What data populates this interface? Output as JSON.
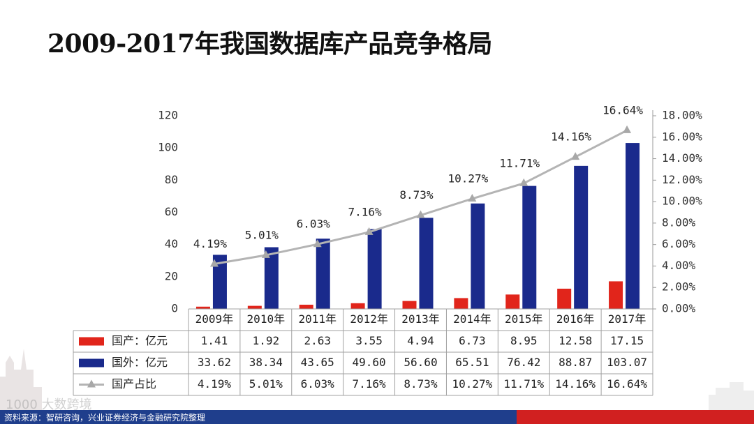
{
  "page": {
    "title": "2009-2017年我国数据库产品竞争格局",
    "source": "资料来源：智研咨询，兴业证券经济与金融研究院整理",
    "watermark": "1000 大数跨境"
  },
  "colors": {
    "domestic": "#e1251b",
    "foreign": "#1a2a8c",
    "share_line": "#b4b4b4",
    "footer_blue": "#1f3e8c",
    "footer_red": "#d12020"
  },
  "chart_data": {
    "type": "bar",
    "title": "",
    "categories": [
      "2009年",
      "2010年",
      "2011年",
      "2012年",
      "2013年",
      "2014年",
      "2015年",
      "2016年",
      "2017年"
    ],
    "series": [
      {
        "name": "国产：亿元",
        "type": "bar",
        "axis": "left",
        "values": [
          1.41,
          1.92,
          2.63,
          3.55,
          4.94,
          6.73,
          8.95,
          12.58,
          17.15
        ],
        "labels": [
          "1.41",
          "1.92",
          "2.63",
          "3.55",
          "4.94",
          "6.73",
          "8.95",
          "12.58",
          "17.15"
        ]
      },
      {
        "name": "国外：亿元",
        "type": "bar",
        "axis": "left",
        "values": [
          33.62,
          38.34,
          43.65,
          49.6,
          56.6,
          65.51,
          76.42,
          88.87,
          103.07
        ],
        "labels": [
          "33.62",
          "38.34",
          "43.65",
          "49.60",
          "56.60",
          "65.51",
          "76.42",
          "88.87",
          "103.07"
        ]
      },
      {
        "name": "国产占比",
        "type": "line",
        "axis": "right",
        "values": [
          4.19,
          5.01,
          6.03,
          7.16,
          8.73,
          10.27,
          11.71,
          14.16,
          16.64
        ],
        "labels": [
          "4.19%",
          "5.01%",
          "6.03%",
          "7.16%",
          "8.73%",
          "10.27%",
          "11.71%",
          "14.16%",
          "16.64%"
        ]
      }
    ],
    "y_left": {
      "min": 0,
      "max": 120,
      "ticks": [
        "0",
        "20",
        "40",
        "60",
        "80",
        "100",
        "120"
      ]
    },
    "y_right": {
      "min": 0,
      "max": 18,
      "ticks": [
        "0.00%",
        "2.00%",
        "4.00%",
        "6.00%",
        "8.00%",
        "10.00%",
        "12.00%",
        "14.00%",
        "16.00%",
        "18.00%"
      ]
    },
    "grid": false,
    "legend": "data-table-bottom"
  }
}
